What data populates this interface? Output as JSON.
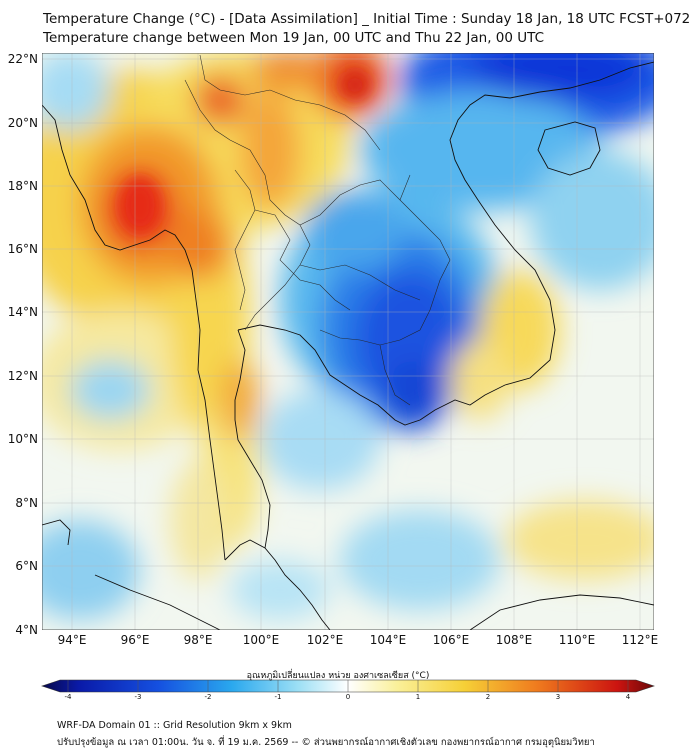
{
  "title_line1": "Temperature Change (°C) - [Data Assimilation] _ Initial Time : Sunday 18 Jan, 18 UTC FCST+072",
  "title_line2": "Temperature change between Mon 19 Jan, 00 UTC and Thu 22 Jan, 00 UTC",
  "lat_ticks": [
    "22°N",
    "20°N",
    "18°N",
    "16°N",
    "14°N",
    "12°N",
    "10°N",
    "8°N",
    "6°N",
    "4°N"
  ],
  "lon_ticks": [
    "94°E",
    "96°E",
    "98°E",
    "100°E",
    "102°E",
    "104°E",
    "106°E",
    "108°E",
    "110°E",
    "112°E"
  ],
  "colorbar_label": "อุณหภูมิเปลี่ยนแปลง หน่วย องศาเซลเซียส (°C)",
  "colorbar_ticks": [
    "-4",
    "-3",
    "-2",
    "-1",
    "0",
    "1",
    "2",
    "3",
    "4"
  ],
  "footer_line1": "WRF-DA Domain 01 :: Grid Resolution 9km x 9km",
  "footer_line2": "ปรับปรุงข้อมูล ณ เวลา 01:00น. วัน จ. ที่ 19 ม.ค. 2569 -- © ส่วนพยากรณ์อากาศเชิงตัวเลข กองพยากรณ์อากาศ กรมอุตุนิยมวิทยา",
  "colors": {
    "cold_strong": "#0a3ad0",
    "cold": "#2f8fe8",
    "cool": "#8fd3f2",
    "neutral": "#f4f7ee",
    "warm": "#f7df6a",
    "hot": "#f39a2c",
    "very_hot": "#e8321e"
  }
}
